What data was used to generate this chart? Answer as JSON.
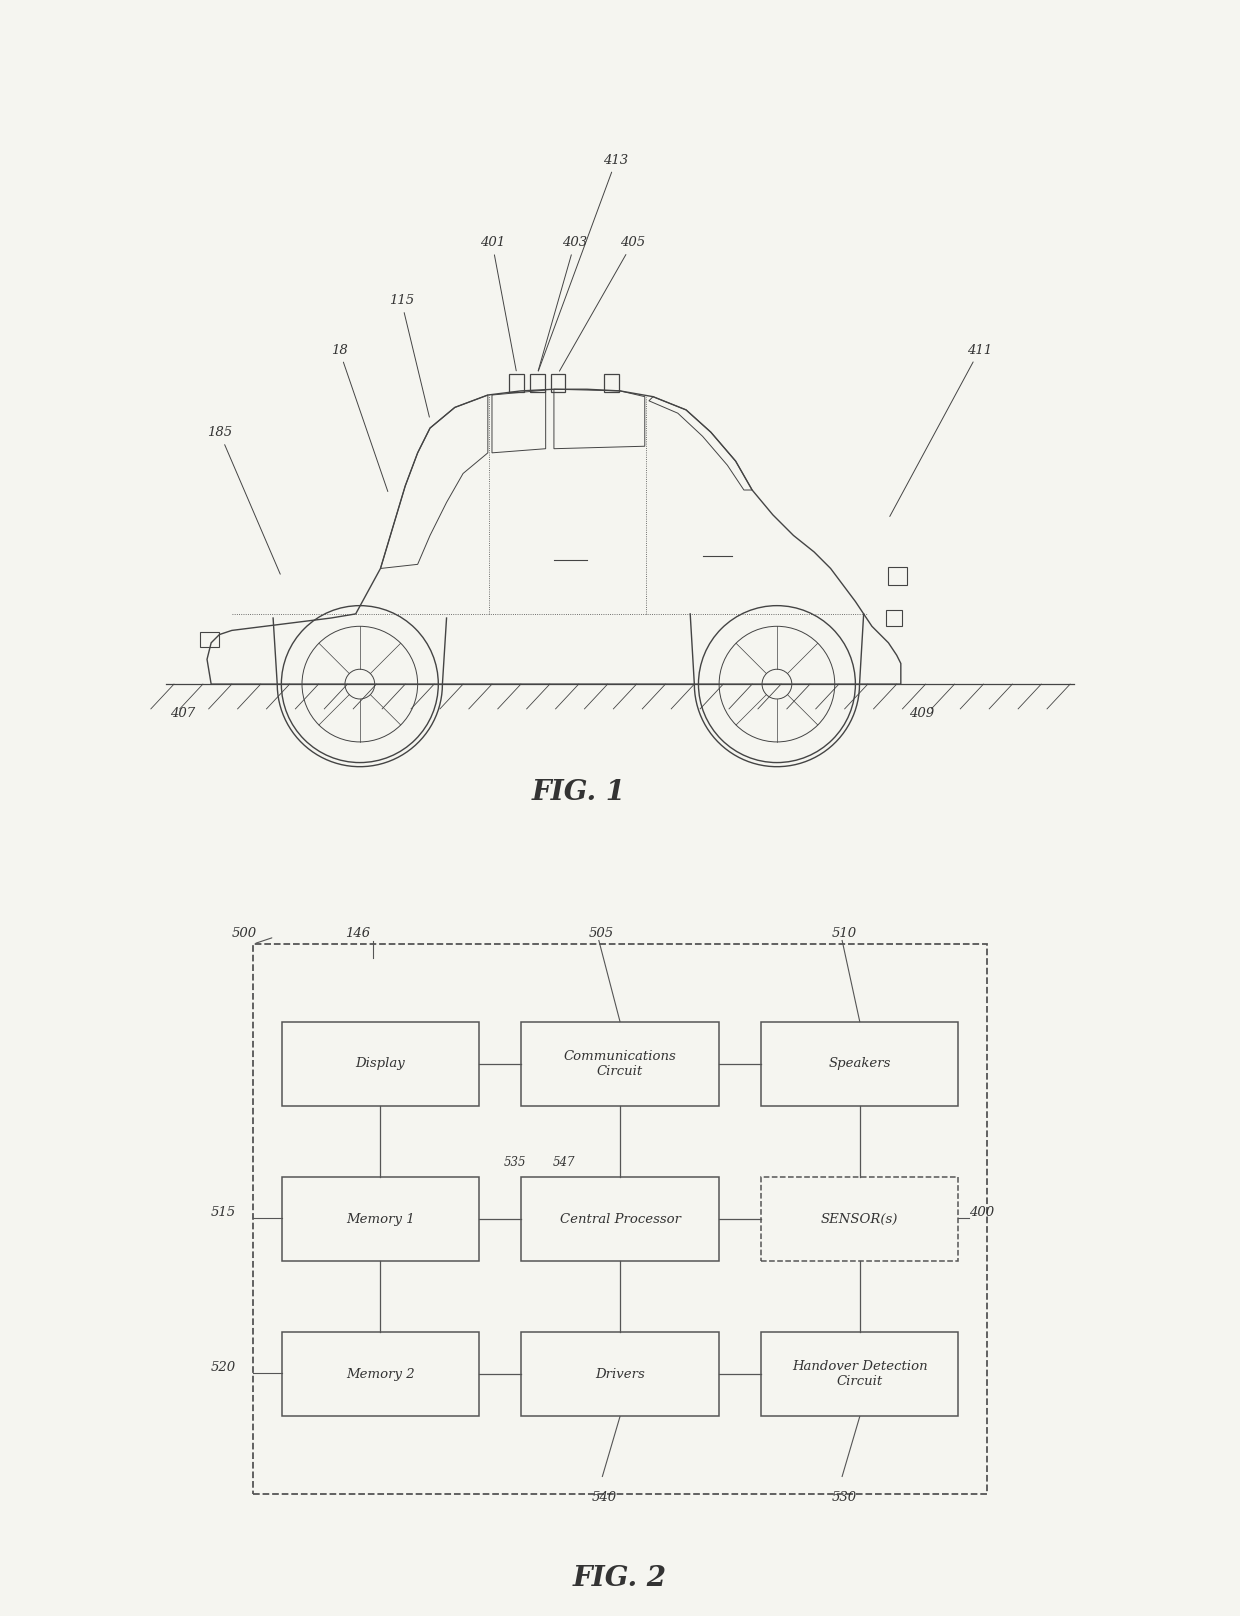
{
  "bg_color": "#f5f5f0",
  "line_color": "#444444",
  "text_color": "#333333",
  "fig1_label": "FIG. 1",
  "fig2_label": "FIG. 2",
  "fig1_annotations": {
    "n413": "413",
    "n401": "401",
    "n403": "403",
    "n405": "405",
    "n411": "411",
    "n115": "115",
    "n18": "18",
    "n185": "185",
    "n407": "407",
    "n409": "409"
  },
  "fig2_nodes": {
    "outer": "500",
    "n146": "146",
    "n505": "505",
    "n510": "510",
    "n515": "515",
    "n520": "520",
    "n535": "535",
    "n547": "547",
    "n400": "400",
    "n540": "540",
    "n530": "530"
  },
  "box_labels": [
    [
      "Display",
      "Communications\nCircuit",
      "Speakers"
    ],
    [
      "Memory 1",
      "Central Processor",
      "SENSOR(s)"
    ],
    [
      "Memory 2",
      "Drivers",
      "Handover Detection\nCircuit"
    ]
  ]
}
